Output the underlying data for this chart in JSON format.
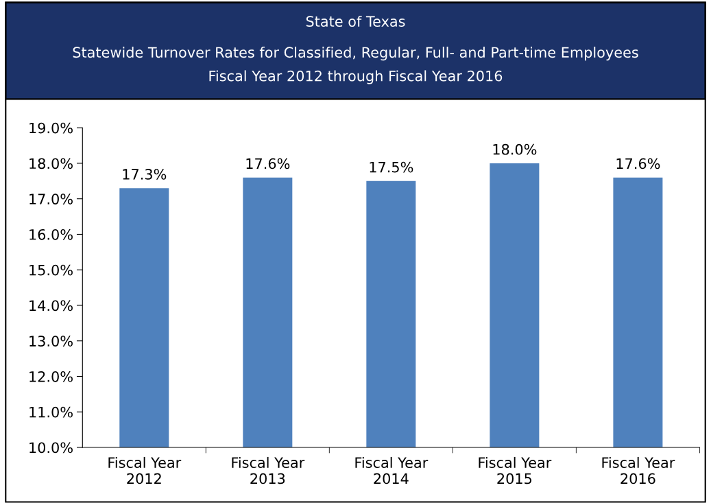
{
  "chart_data": {
    "type": "bar",
    "title": "State of Texas",
    "subtitle": "Statewide Turnover Rates for Classified, Regular, Full- and Part-time Employees\nFiscal Year 2012 through Fiscal Year 2016",
    "categories": [
      "Fiscal Year\n2012",
      "Fiscal Year\n2013",
      "Fiscal Year\n2014",
      "Fiscal Year\n2015",
      "Fiscal Year\n2016"
    ],
    "values": [
      17.3,
      17.6,
      17.5,
      18.0,
      17.6
    ],
    "value_labels": [
      "17.3%",
      "17.6%",
      "17.5%",
      "18.0%",
      "17.6%"
    ],
    "color": "#4f81bd",
    "ylim": [
      10,
      19
    ],
    "yticks": [
      {
        "value": 10,
        "label": "10.0%"
      },
      {
        "value": 11,
        "label": "11.0%"
      },
      {
        "value": 12,
        "label": "12.0%"
      },
      {
        "value": 13,
        "label": "13.0%"
      },
      {
        "value": 14,
        "label": "14.0%"
      },
      {
        "value": 15,
        "label": "15.0%"
      },
      {
        "value": 16,
        "label": "16.0%"
      },
      {
        "value": 17,
        "label": "17.0%"
      },
      {
        "value": 18,
        "label": "18.0%"
      },
      {
        "value": 19,
        "label": "19.0%"
      }
    ],
    "grid": false,
    "legend": false
  }
}
